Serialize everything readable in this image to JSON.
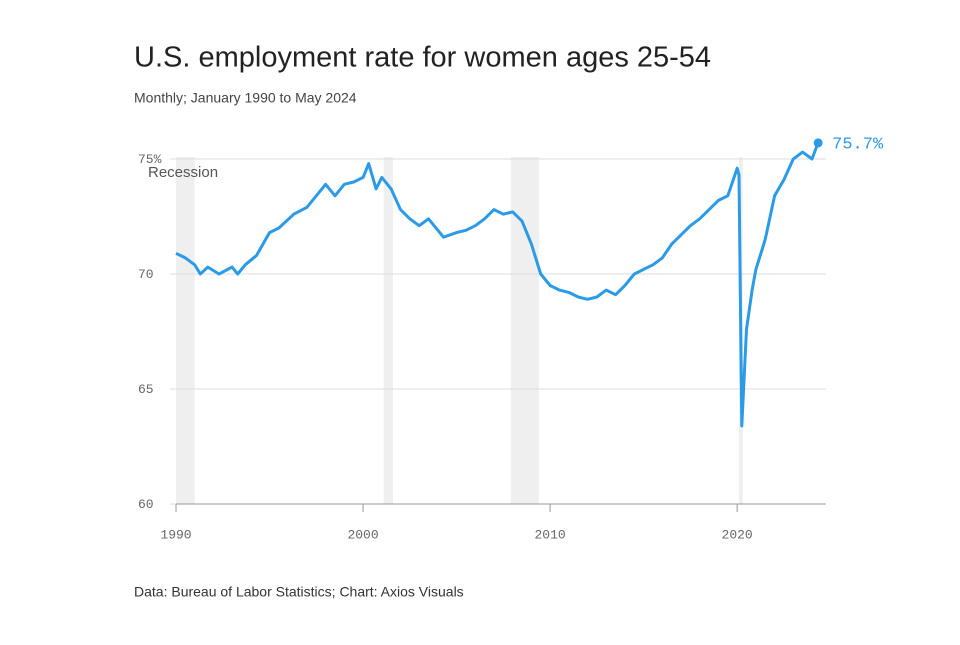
{
  "chart_data": {
    "type": "line",
    "title": "U.S. employment rate for women ages 25-54",
    "subtitle": "Monthly; January 1990 to May 2024",
    "source": "Data: Bureau of Labor Statistics; Chart: Axios Visuals",
    "recession_label": "Recession",
    "recessions": [
      [
        1990.0,
        1991.0
      ],
      [
        2001.1,
        2001.6
      ],
      [
        2007.9,
        2009.4
      ],
      [
        2020.1,
        2020.3
      ]
    ],
    "recession_color": "#efefef",
    "x": [
      1990.0,
      1990.5,
      1991.0,
      1991.3,
      1991.7,
      1992.3,
      1993.0,
      1993.3,
      1993.7,
      1994.3,
      1995.0,
      1995.5,
      1996.3,
      1997.0,
      1997.5,
      1998.0,
      1998.5,
      1999.0,
      1999.5,
      2000.0,
      2000.3,
      2000.7,
      2001.0,
      2001.5,
      2002.0,
      2002.5,
      2003.0,
      2003.5,
      2004.0,
      2004.3,
      2005.0,
      2005.5,
      2006.0,
      2006.5,
      2007.0,
      2007.5,
      2008.0,
      2008.5,
      2009.0,
      2009.5,
      2010.0,
      2010.5,
      2011.0,
      2011.5,
      2012.0,
      2012.5,
      2013.0,
      2013.5,
      2014.0,
      2014.5,
      2015.0,
      2015.5,
      2016.0,
      2016.5,
      2017.0,
      2017.5,
      2018.0,
      2018.5,
      2019.0,
      2019.5,
      2020.0,
      2020.1,
      2020.25,
      2020.5,
      2020.8,
      2021.0,
      2021.5,
      2022.0,
      2022.5,
      2023.0,
      2023.5,
      2024.0,
      2024.33
    ],
    "series": [
      {
        "name": "Employment rate",
        "color": "#2b9be8",
        "values": [
          70.9,
          70.7,
          70.4,
          70.0,
          70.3,
          70.0,
          70.3,
          70.0,
          70.4,
          70.8,
          71.8,
          72.0,
          72.6,
          72.9,
          73.4,
          73.9,
          73.4,
          73.9,
          74.0,
          74.2,
          74.8,
          73.7,
          74.2,
          73.7,
          72.8,
          72.4,
          72.1,
          72.4,
          71.9,
          71.6,
          71.8,
          71.9,
          72.1,
          72.4,
          72.8,
          72.6,
          72.7,
          72.3,
          71.3,
          70.0,
          69.5,
          69.3,
          69.2,
          69.0,
          68.9,
          69.0,
          69.3,
          69.1,
          69.5,
          70.0,
          70.2,
          70.4,
          70.7,
          71.3,
          71.7,
          72.1,
          72.4,
          72.8,
          73.2,
          73.4,
          74.6,
          74.3,
          63.4,
          67.6,
          69.3,
          70.2,
          71.5,
          73.4,
          74.1,
          75.0,
          75.3,
          75.0,
          75.7
        ],
        "value_labels": [
          null,
          null,
          null,
          null,
          null,
          null,
          null,
          null,
          null,
          null,
          null,
          null,
          null,
          null,
          null,
          null,
          null,
          null,
          null,
          null,
          null,
          null,
          null,
          null,
          null,
          null,
          null,
          null,
          null,
          null,
          null,
          null,
          null,
          null,
          null,
          null,
          null,
          null,
          null,
          null,
          null,
          null,
          null,
          null,
          null,
          null,
          null,
          null,
          null,
          null,
          null,
          null,
          null,
          null,
          null,
          null,
          null,
          null,
          null,
          null,
          null,
          null,
          null,
          null,
          null,
          null,
          null,
          null,
          null,
          null,
          null,
          null,
          "75.7%"
        ]
      }
    ],
    "xlim": [
      1990,
      2024.75
    ],
    "xticks": [
      1990,
      2000,
      2010,
      2020
    ],
    "ylim": [
      60,
      75
    ],
    "yticks": [
      60,
      65,
      70,
      {
        "value": 75,
        "label": "75%"
      }
    ],
    "grid": true
  }
}
